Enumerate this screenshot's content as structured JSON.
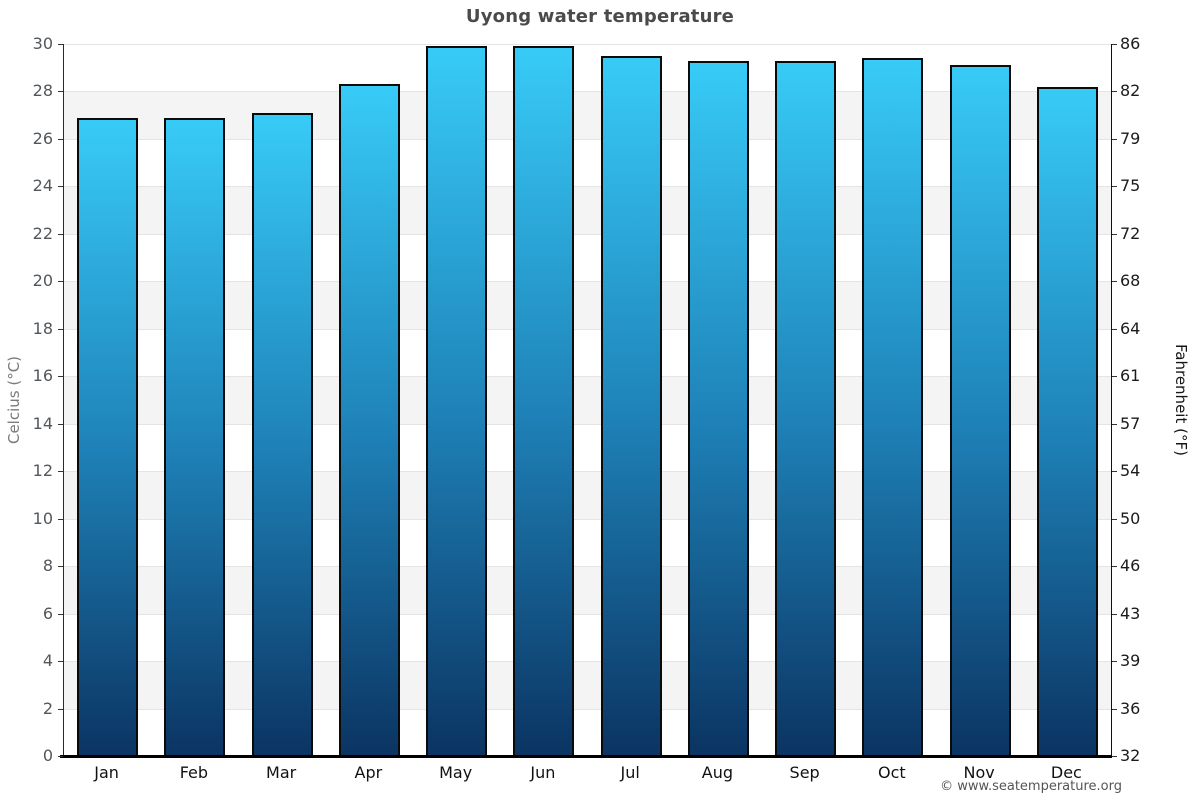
{
  "chart_data": {
    "type": "bar",
    "title": "Uyong water temperature",
    "categories": [
      "Jan",
      "Feb",
      "Mar",
      "Apr",
      "May",
      "Jun",
      "Jul",
      "Aug",
      "Sep",
      "Oct",
      "Nov",
      "Dec"
    ],
    "values": [
      26.9,
      26.9,
      27.1,
      28.3,
      29.9,
      29.9,
      29.5,
      29.3,
      29.3,
      29.4,
      29.1,
      28.2
    ],
    "series_name": "Water temperature (°C)",
    "xlabel": "",
    "ylabel_left": "Celcius (°C)",
    "ylabel_right": "Fahrenheit (°F)",
    "ylim": [
      0,
      30
    ],
    "yticks_celsius": [
      "30",
      "28",
      "26",
      "24",
      "22",
      "20",
      "18",
      "16",
      "14",
      "12",
      "10",
      "8",
      "6",
      "4",
      "2",
      "0"
    ],
    "yticks_fahrenheit": [
      "86",
      "82",
      "79",
      "75",
      "72",
      "68",
      "64",
      "61",
      "57",
      "54",
      "50",
      "46",
      "43",
      "39",
      "36",
      "32"
    ],
    "grid": "horizontal-bands",
    "legend": "none",
    "colors": {
      "bar_gradient_top": "#38cbf7",
      "bar_gradient_mid": "#1e81b7",
      "bar_gradient_bottom": "#0b3462",
      "bar_border": "#0a0a0a",
      "band_light": "#ffffff",
      "band_shaded": "#f4f4f4",
      "gridline": "#e4e4e4",
      "title_text": "#4a4a4a",
      "left_tick_text": "#52575c",
      "right_tick_text": "#1b1b1b"
    }
  },
  "footer": {
    "credit": "© www.seatemperature.org"
  }
}
